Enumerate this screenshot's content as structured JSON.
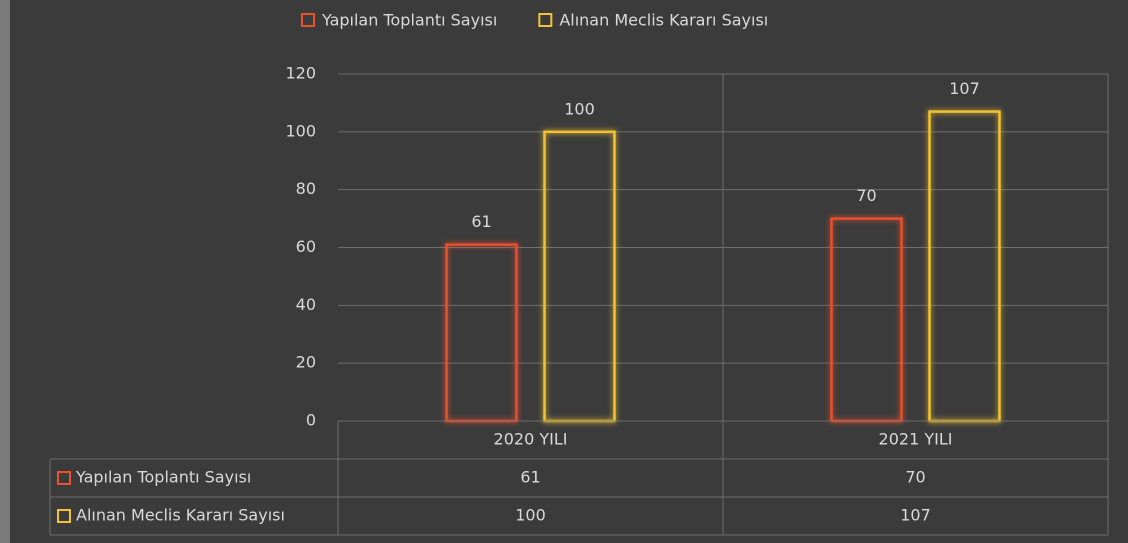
{
  "chart_data": {
    "type": "bar",
    "categories": [
      "2020 YILI",
      "2021 YILI"
    ],
    "series": [
      {
        "name": "Yapılan Toplantı Sayısı",
        "color": "#e8502e",
        "values": [
          61,
          70
        ]
      },
      {
        "name": "Alınan Meclis Kararı Sayısı",
        "color": "#f2c232",
        "values": [
          100,
          107
        ]
      }
    ],
    "ylim": [
      0,
      120
    ],
    "yticks": [
      0,
      20,
      40,
      60,
      80,
      100,
      120
    ],
    "grid": true,
    "legend": "top",
    "data_table": true
  }
}
